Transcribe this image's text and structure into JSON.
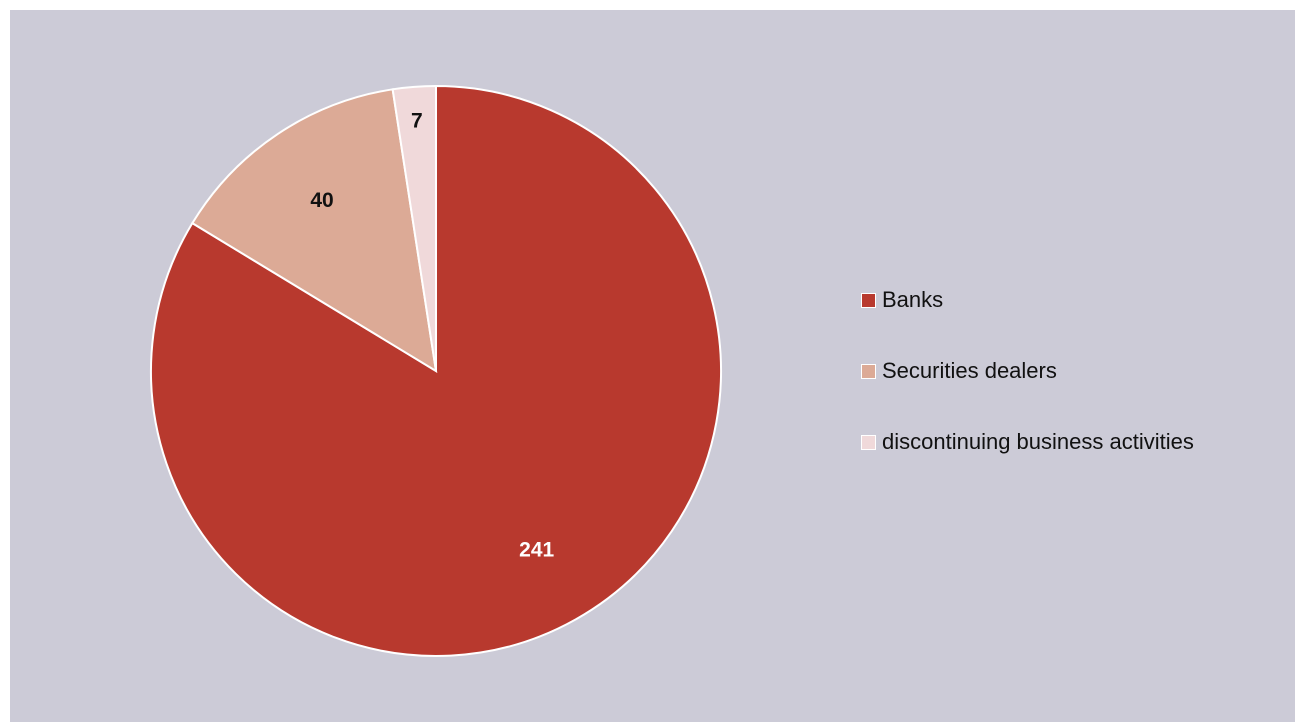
{
  "chart_data": {
    "type": "pie",
    "title": "",
    "start_angle_deg": 0,
    "direction": "clockwise",
    "legend_position": "right",
    "slices": [
      {
        "label": "Banks",
        "value": 241,
        "color": "#b8392e",
        "label_color": "#ffffff"
      },
      {
        "label": "Securities dealers",
        "value": 40,
        "color": "#dcaa96",
        "label_color": "#111111"
      },
      {
        "label": "discontinuing business activities",
        "value": 7,
        "color": "#f0d9da",
        "label_color": "#111111"
      }
    ]
  },
  "colors": {
    "panel_background": "#cccbd7",
    "slice_border": "#ffffff"
  }
}
